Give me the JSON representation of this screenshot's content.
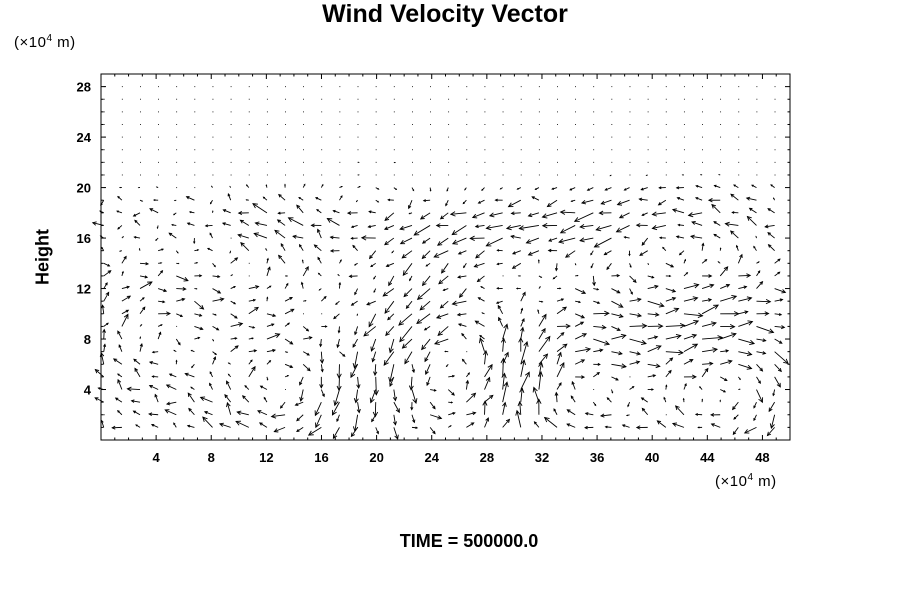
{
  "chart_data": {
    "type": "vector_field",
    "title": "Wind Velocity Vector",
    "ylabel": "Height",
    "x_unit": {
      "prefix": "(×10",
      "exp": "4",
      "suffix": " m)"
    },
    "y_unit": {
      "prefix": "(×10",
      "exp": "4",
      "suffix": " m)"
    },
    "xlim": [
      0,
      50
    ],
    "ylim": [
      0,
      29
    ],
    "x_ticks": [
      4,
      8,
      12,
      16,
      20,
      24,
      28,
      32,
      36,
      40,
      44,
      48
    ],
    "y_ticks": [
      4,
      8,
      12,
      16,
      20,
      24,
      28
    ],
    "x_tick_labels": [
      "4",
      "8",
      "12",
      "16",
      "20",
      "24",
      "28",
      "32",
      "36",
      "40",
      "44",
      "48"
    ],
    "y_tick_labels": [
      "4",
      "8",
      "12",
      "16",
      "20",
      "24",
      "28"
    ],
    "grid": false,
    "vector_color": "#000000",
    "vortices": [
      {
        "x": 4,
        "y": 8,
        "radius": 4,
        "strength": -1.5
      },
      {
        "x": 13,
        "y": 4,
        "radius": 4,
        "strength": -2.0
      },
      {
        "x": 19,
        "y": 14,
        "radius": 5,
        "strength": -1.2
      },
      {
        "x": 26,
        "y": 6,
        "radius": 4,
        "strength": 1.6
      },
      {
        "x": 34,
        "y": 4,
        "radius": 4,
        "strength": -1.8
      },
      {
        "x": 45,
        "y": 4,
        "radius": 5,
        "strength": -2.0
      },
      {
        "x": 42,
        "y": 14,
        "radius": 5,
        "strength": 1.0
      }
    ],
    "upper_flow": {
      "y_top": 20,
      "strength_u": -1.6
    }
  },
  "footer": {
    "time_label": "TIME = 500000.0"
  }
}
